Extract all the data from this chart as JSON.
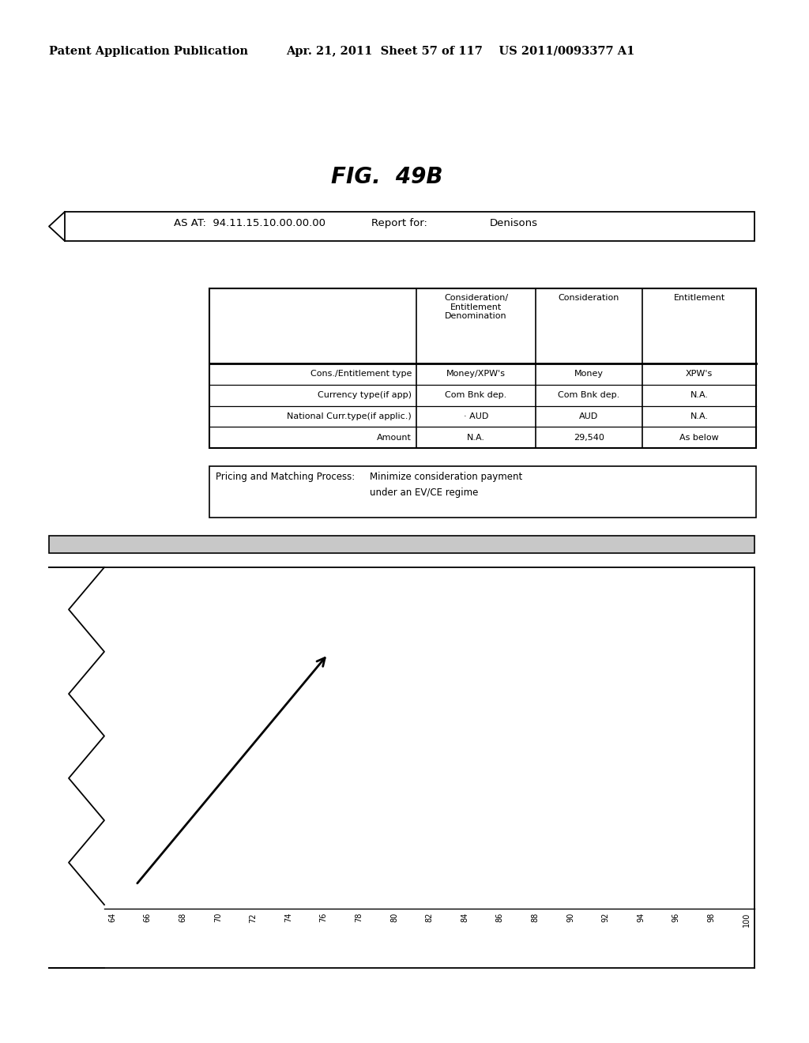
{
  "patent_left": "Patent Application Publication",
  "patent_right": "Apr. 21, 2011  Sheet 57 of 117    US 2011/0093377 A1",
  "fig_title": "FIG.  49B",
  "header_as_at": "AS AT:  94.11.15.10.00.00.00",
  "header_report": "Report for:",
  "header_name": "Denisons",
  "table_col1_headers": [
    "",
    "Consideration/\nEntitlement\nDenomination",
    "Consideration",
    "Entitlement"
  ],
  "table_rows": [
    [
      "Cons./Entitlement type",
      "Money/XPW's",
      "Money",
      "XPW's"
    ],
    [
      "Currency type(if app)",
      "Com Bnk dep.",
      "Com Bnk dep.",
      "N.A."
    ],
    [
      "National Curr.type(if applic.)",
      "· AUD",
      "AUD",
      "N.A."
    ],
    [
      "Amount",
      "N.A.",
      "29,540",
      "As below"
    ]
  ],
  "pricing_label": "Pricing and Matching Process:",
  "pricing_text_line1": "Minimize consideration payment",
  "pricing_text_line2": "under an EV/CE regime",
  "x_tick_labels": [
    "64",
    "66",
    "68",
    "70",
    "72",
    "74",
    "76",
    "78",
    "80",
    "82",
    "84",
    "86",
    "88",
    "90",
    "92",
    "94",
    "96",
    "98",
    "100"
  ],
  "background_color": "#ffffff"
}
